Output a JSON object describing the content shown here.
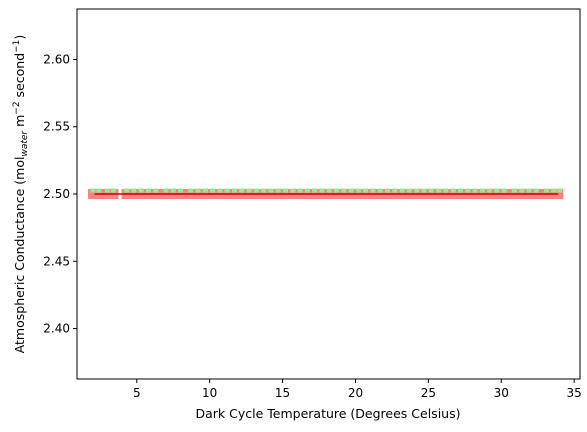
{
  "chart_data": {
    "type": "scatter",
    "title": "",
    "xlabel": "Dark Cycle Temperature (Degrees Celsius)",
    "ylabel": {
      "prefix": "Atmospheric Conductance (mol",
      "subscript": "water",
      "middle": " m",
      "sup1": "−2",
      "middle2": " second",
      "sup2": "−1",
      "suffix": ")"
    },
    "xlim": [
      0.9,
      35.4
    ],
    "ylim": [
      2.3625,
      2.6375
    ],
    "xticks": [
      5,
      10,
      15,
      20,
      25,
      30,
      35
    ],
    "yticks": [
      2.4,
      2.45,
      2.5,
      2.55,
      2.6
    ],
    "xtick_labels": [
      "5",
      "10",
      "15",
      "20",
      "25",
      "30",
      "35"
    ],
    "ytick_labels": [
      "2.40",
      "2.45",
      "2.50",
      "2.55",
      "2.60"
    ],
    "grid": false,
    "series": [
      {
        "marker": "square",
        "color": "#ff8080",
        "y": 2.5,
        "x": [
          2.0,
          2.4,
          2.7,
          3.1,
          3.4,
          4.3,
          4.7,
          5.1,
          5.5,
          5.9,
          6.3,
          6.9,
          7.3,
          7.7,
          8.1,
          8.7,
          9.1,
          9.5,
          9.9,
          10.3,
          10.7,
          11.1,
          11.5,
          11.9,
          12.3,
          12.7,
          13.1,
          13.5,
          13.9,
          14.3,
          14.7,
          15.1,
          15.5,
          15.9,
          16.3,
          16.7,
          17.1,
          17.5,
          17.9,
          18.3,
          18.7,
          19.1,
          19.5,
          19.9,
          20.3,
          20.7,
          21.1,
          21.5,
          21.9,
          22.3,
          22.7,
          23.1,
          23.5,
          23.9,
          24.3,
          24.7,
          25.1,
          25.5,
          25.9,
          26.3,
          26.7,
          27.1,
          27.5,
          27.9,
          28.3,
          28.7,
          29.1,
          29.5,
          29.9,
          30.3,
          30.9,
          31.3,
          31.7,
          32.1,
          32.5,
          33.1,
          33.5,
          33.9
        ]
      },
      {
        "marker": "dotted-line",
        "color": "#90ee90",
        "y": 2.5,
        "x": [
          2.0,
          2.4,
          3.0,
          3.4,
          4.3,
          4.8,
          5.3,
          5.8,
          6.3,
          7.0,
          7.5,
          8.0,
          8.7,
          9.2,
          9.7,
          10.2,
          10.7,
          11.2,
          11.7,
          12.2,
          12.7,
          13.2,
          13.7,
          14.2,
          14.7,
          15.2,
          15.7,
          16.2,
          16.7,
          17.2,
          17.7,
          18.2,
          18.7,
          19.2,
          19.7,
          20.2,
          20.7,
          21.2,
          21.7,
          22.2,
          22.7,
          23.2,
          23.7,
          24.2,
          24.7,
          25.2,
          25.7,
          26.2,
          26.7,
          27.2,
          27.7,
          28.2,
          28.7,
          29.2,
          29.7,
          30.2,
          30.9,
          31.4,
          31.9,
          32.4,
          33.1,
          33.6,
          34.0
        ]
      },
      {
        "marker": "line",
        "color": "#cc0000",
        "y": 2.5,
        "x": [
          2.1,
          33.9
        ]
      }
    ]
  }
}
